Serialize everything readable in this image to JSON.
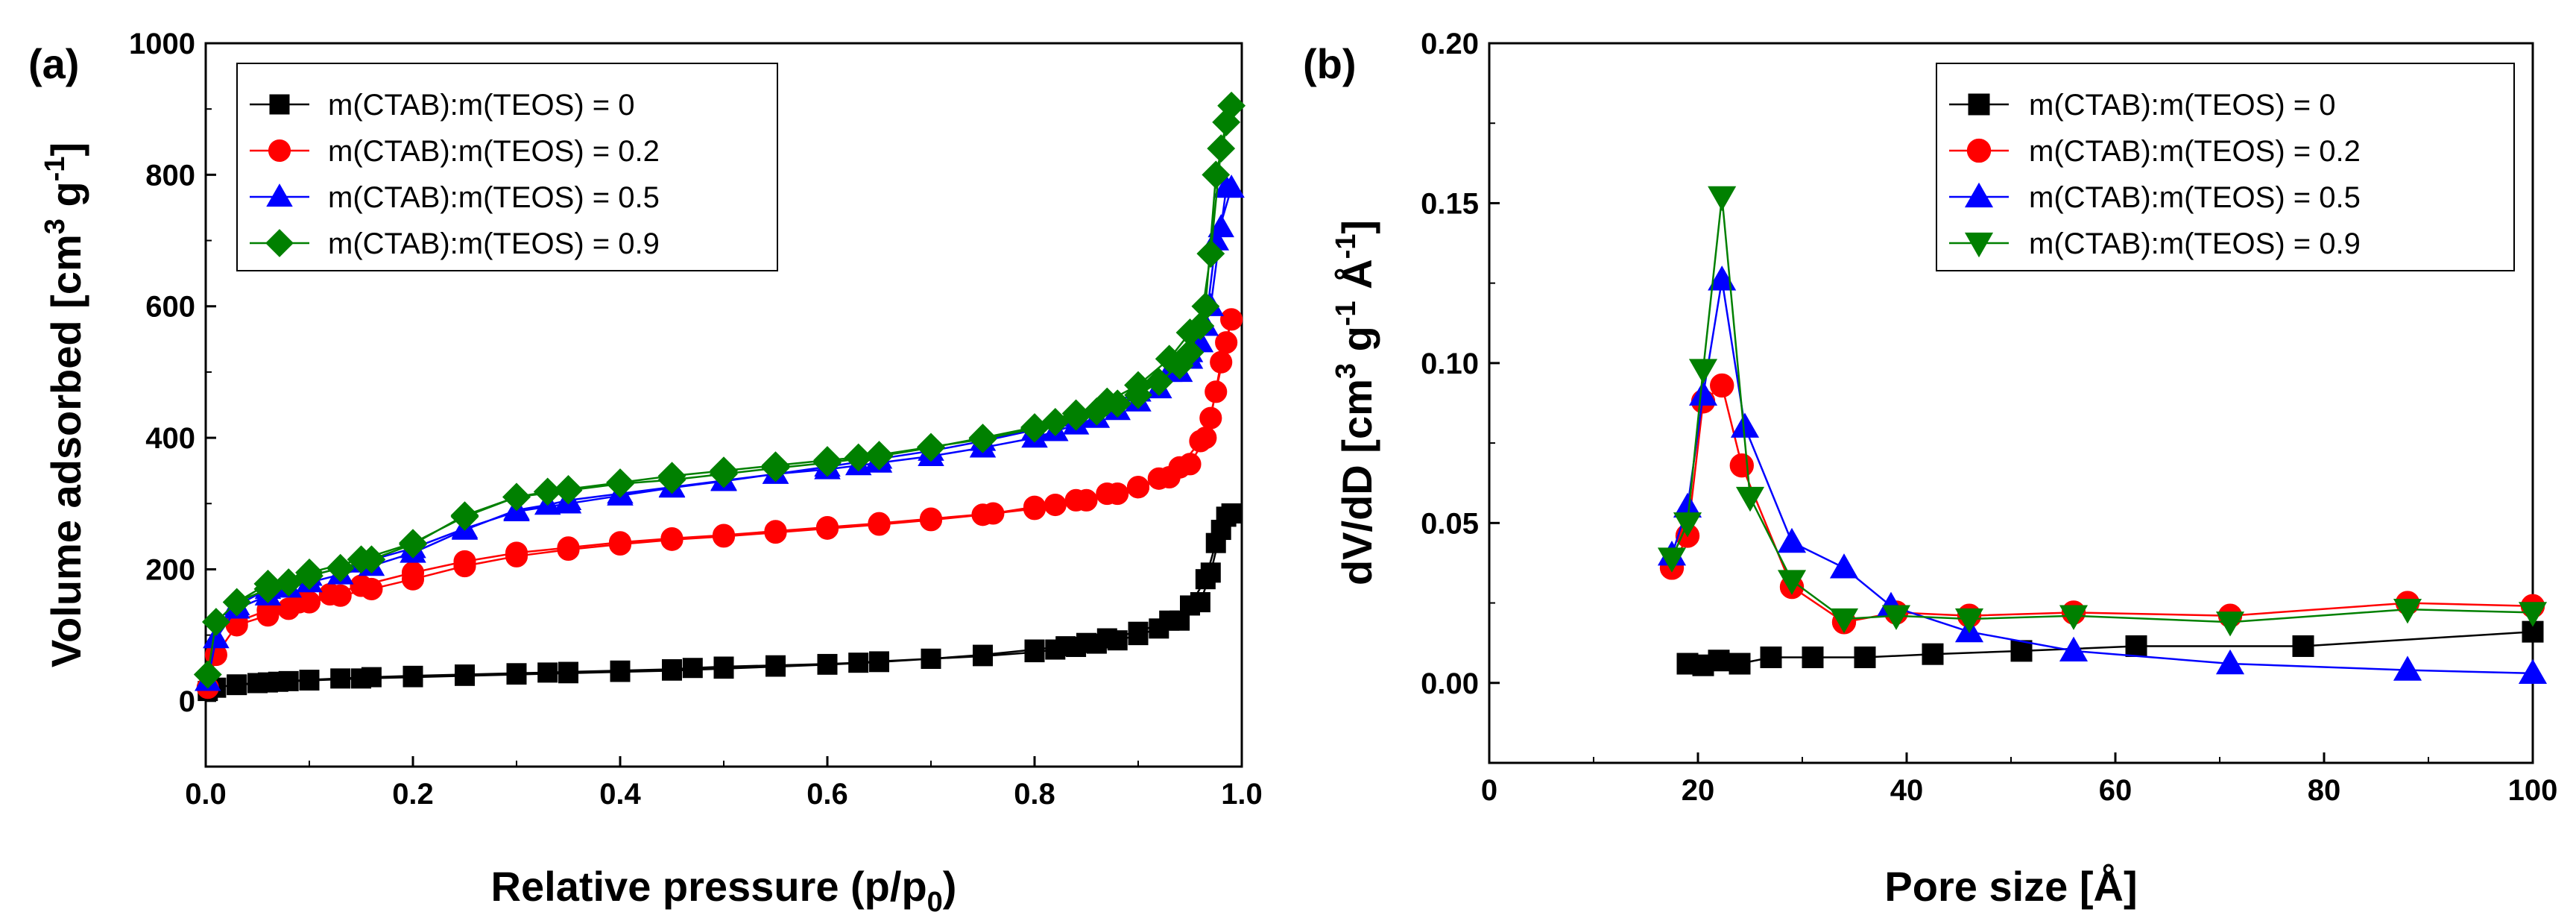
{
  "chart_data": [
    {
      "type": "scatter",
      "panel_label": "(a)",
      "xlabel_main": "Relative pressure (p/p",
      "xlabel_sub": "0",
      "xlabel_end": ")",
      "ylabel_main": "Volume adsorbed [cm",
      "ylabel_sup1": "3",
      "ylabel_mid": " g",
      "ylabel_sup2": "-1",
      "ylabel_end": "]",
      "xlim": [
        0,
        1.0
      ],
      "ylim": [
        -100,
        1000
      ],
      "xticks": [
        0.0,
        0.2,
        0.4,
        0.6,
        0.8,
        1.0
      ],
      "xtick_labels": [
        "0.0",
        "0.2",
        "0.4",
        "0.6",
        "0.8",
        "1.0"
      ],
      "yticks": [
        0,
        200,
        400,
        600,
        800,
        1000
      ],
      "ytick_labels": [
        "0",
        "200",
        "400",
        "600",
        "800",
        "1000"
      ],
      "legend_position": "top-left",
      "series": [
        {
          "name": "m(CTAB):m(TEOS) = 0",
          "color": "#000000",
          "marker": "square",
          "x": [
            0.002,
            0.01,
            0.03,
            0.06,
            0.08,
            0.1,
            0.13,
            0.16,
            0.2,
            0.25,
            0.3,
            0.33,
            0.35,
            0.4,
            0.45,
            0.47,
            0.5,
            0.55,
            0.6,
            0.63,
            0.65,
            0.7,
            0.75,
            0.8,
            0.82,
            0.84,
            0.86,
            0.88,
            0.9,
            0.92,
            0.94,
            0.96,
            0.97,
            0.98,
            0.99,
            0.985,
            0.975,
            0.965,
            0.95,
            0.93,
            0.9,
            0.87,
            0.85,
            0.83,
            0.8,
            0.75,
            0.7,
            0.65,
            0.6,
            0.55,
            0.5,
            0.45,
            0.4,
            0.35,
            0.3,
            0.25,
            0.2,
            0.15,
            0.1,
            0.07,
            0.05,
            0.03
          ],
          "y": [
            15,
            20,
            25,
            28,
            30,
            32,
            34,
            36,
            38,
            40,
            42,
            43,
            44,
            46,
            48,
            50,
            52,
            54,
            56,
            58,
            60,
            64,
            68,
            74,
            78,
            82,
            87,
            92,
            100,
            110,
            122,
            150,
            195,
            260,
            285,
            280,
            240,
            185,
            145,
            122,
            105,
            95,
            88,
            83,
            78,
            70,
            64,
            59,
            55,
            52,
            49,
            46,
            44,
            42,
            40,
            38,
            36,
            34,
            31,
            29,
            27,
            24
          ]
        },
        {
          "name": "m(CTAB):m(TEOS) = 0.2",
          "color": "#ff0000",
          "marker": "circle",
          "x": [
            0.002,
            0.01,
            0.03,
            0.06,
            0.08,
            0.1,
            0.13,
            0.16,
            0.2,
            0.25,
            0.3,
            0.35,
            0.4,
            0.45,
            0.5,
            0.55,
            0.6,
            0.65,
            0.7,
            0.75,
            0.8,
            0.82,
            0.85,
            0.88,
            0.9,
            0.92,
            0.94,
            0.96,
            0.97,
            0.98,
            0.99,
            0.985,
            0.975,
            0.965,
            0.95,
            0.93,
            0.9,
            0.87,
            0.84,
            0.8,
            0.76,
            0.7,
            0.65,
            0.6,
            0.55,
            0.5,
            0.45,
            0.4,
            0.35,
            0.3,
            0.25,
            0.2,
            0.15,
            0.12,
            0.09,
            0.06,
            0.03
          ],
          "y": [
            20,
            70,
            115,
            130,
            140,
            150,
            160,
            170,
            185,
            205,
            220,
            230,
            238,
            245,
            250,
            256,
            262,
            268,
            275,
            283,
            292,
            298,
            305,
            315,
            325,
            338,
            355,
            395,
            430,
            515,
            580,
            545,
            470,
            400,
            360,
            340,
            325,
            315,
            305,
            295,
            285,
            277,
            270,
            264,
            258,
            252,
            247,
            241,
            233,
            225,
            212,
            195,
            175,
            162,
            150,
            138,
            120
          ]
        },
        {
          "name": "m(CTAB):m(TEOS) = 0.5",
          "color": "#0000ff",
          "marker": "triangle-up",
          "x": [
            0.002,
            0.01,
            0.03,
            0.06,
            0.08,
            0.1,
            0.13,
            0.16,
            0.2,
            0.25,
            0.3,
            0.33,
            0.35,
            0.4,
            0.45,
            0.5,
            0.55,
            0.6,
            0.63,
            0.65,
            0.7,
            0.75,
            0.8,
            0.82,
            0.84,
            0.86,
            0.88,
            0.9,
            0.92,
            0.94,
            0.95,
            0.96,
            0.97,
            0.98,
            0.985,
            0.99,
            0.975,
            0.965,
            0.95,
            0.93,
            0.9,
            0.87,
            0.84,
            0.8,
            0.75,
            0.7,
            0.65,
            0.6,
            0.55,
            0.5,
            0.45,
            0.4,
            0.35,
            0.3,
            0.25,
            0.2,
            0.15,
            0.1,
            0.06,
            0.03
          ],
          "y": [
            30,
            95,
            140,
            160,
            172,
            180,
            192,
            205,
            225,
            260,
            290,
            298,
            305,
            315,
            325,
            335,
            345,
            352,
            358,
            362,
            372,
            385,
            400,
            410,
            420,
            430,
            442,
            455,
            475,
            500,
            520,
            545,
            600,
            720,
            780,
            780,
            700,
            570,
            530,
            500,
            470,
            448,
            432,
            412,
            395,
            380,
            368,
            356,
            345,
            334,
            324,
            312,
            300,
            288,
            262,
            232,
            210,
            190,
            170,
            145
          ]
        },
        {
          "name": "m(CTAB):m(TEOS) = 0.9",
          "color": "#008000",
          "marker": "diamond",
          "x": [
            0.002,
            0.01,
            0.03,
            0.06,
            0.08,
            0.1,
            0.13,
            0.16,
            0.2,
            0.25,
            0.3,
            0.33,
            0.35,
            0.4,
            0.45,
            0.5,
            0.55,
            0.6,
            0.63,
            0.65,
            0.7,
            0.75,
            0.8,
            0.82,
            0.84,
            0.86,
            0.88,
            0.9,
            0.92,
            0.94,
            0.95,
            0.96,
            0.97,
            0.98,
            0.985,
            0.99,
            0.975,
            0.965,
            0.95,
            0.93,
            0.9,
            0.87,
            0.84,
            0.8,
            0.75,
            0.7,
            0.65,
            0.6,
            0.55,
            0.5,
            0.45,
            0.4,
            0.35,
            0.3,
            0.25,
            0.2,
            0.15,
            0.1,
            0.06,
            0.03
          ],
          "y": [
            40,
            120,
            150,
            170,
            180,
            190,
            202,
            215,
            238,
            282,
            310,
            318,
            322,
            332,
            342,
            350,
            358,
            366,
            370,
            374,
            386,
            398,
            414,
            424,
            432,
            440,
            452,
            465,
            485,
            510,
            530,
            570,
            680,
            840,
            880,
            905,
            800,
            600,
            560,
            520,
            480,
            455,
            437,
            416,
            400,
            385,
            372,
            362,
            354,
            345,
            336,
            330,
            320,
            310,
            280,
            240,
            215,
            195,
            178,
            150
          ]
        }
      ]
    },
    {
      "type": "line",
      "panel_label": "(b)",
      "xlabel_main": "Pore size  [Å]",
      "ylabel_main": "dV/dD  [cm",
      "ylabel_sup1": "3",
      "ylabel_mid": " g",
      "ylabel_sup2": "-1",
      "ylabel_mid2": " Å",
      "ylabel_sup3": "-1",
      "ylabel_end": "]",
      "xlim": [
        0,
        100
      ],
      "ylim": [
        -0.025,
        0.2
      ],
      "xticks": [
        0,
        20,
        40,
        60,
        80,
        100
      ],
      "xtick_labels": [
        "0",
        "20",
        "40",
        "60",
        "80",
        "100"
      ],
      "yticks": [
        0,
        0.05,
        0.1,
        0.15,
        0.2
      ],
      "ytick_labels": [
        "0.00",
        "0.05",
        "0.10",
        "0.15",
        "0.20"
      ],
      "legend_position": "top-right",
      "series": [
        {
          "name": "m(CTAB):m(TEOS) = 0",
          "color": "#000000",
          "marker": "square",
          "x": [
            19,
            20.5,
            22,
            24,
            27,
            31,
            36,
            42.5,
            51,
            62,
            78,
            100
          ],
          "y": [
            0.006,
            0.0055,
            0.007,
            0.006,
            0.008,
            0.008,
            0.008,
            0.009,
            0.01,
            0.0115,
            0.0115,
            0.016
          ]
        },
        {
          "name": "m(CTAB):m(TEOS) = 0.2",
          "color": "#ff0000",
          "marker": "circle",
          "x": [
            17.5,
            19,
            20.5,
            22.3,
            24.2,
            29,
            34,
            39,
            46,
            56,
            71,
            88,
            100
          ],
          "y": [
            0.036,
            0.046,
            0.088,
            0.093,
            0.068,
            0.03,
            0.019,
            0.022,
            0.021,
            0.022,
            0.021,
            0.025,
            0.024
          ]
        },
        {
          "name": "m(CTAB):m(TEOS) = 0.5",
          "color": "#0000ff",
          "marker": "triangle-up",
          "x": [
            17.5,
            19,
            20.5,
            22.3,
            24.5,
            29,
            34,
            38.5,
            46,
            56,
            71,
            88,
            100
          ],
          "y": [
            0.04,
            0.055,
            0.09,
            0.126,
            0.08,
            0.044,
            0.036,
            0.024,
            0.016,
            0.01,
            0.006,
            0.004,
            0.003
          ]
        },
        {
          "name": "m(CTAB):m(TEOS) = 0.9",
          "color": "#008000",
          "marker": "triangle-down",
          "x": [
            17.5,
            19,
            20.5,
            22.3,
            25,
            29,
            34,
            39,
            46,
            56,
            71,
            88,
            100
          ],
          "y": [
            0.039,
            0.05,
            0.098,
            0.152,
            0.058,
            0.032,
            0.02,
            0.021,
            0.02,
            0.021,
            0.019,
            0.023,
            0.022
          ]
        }
      ]
    }
  ]
}
